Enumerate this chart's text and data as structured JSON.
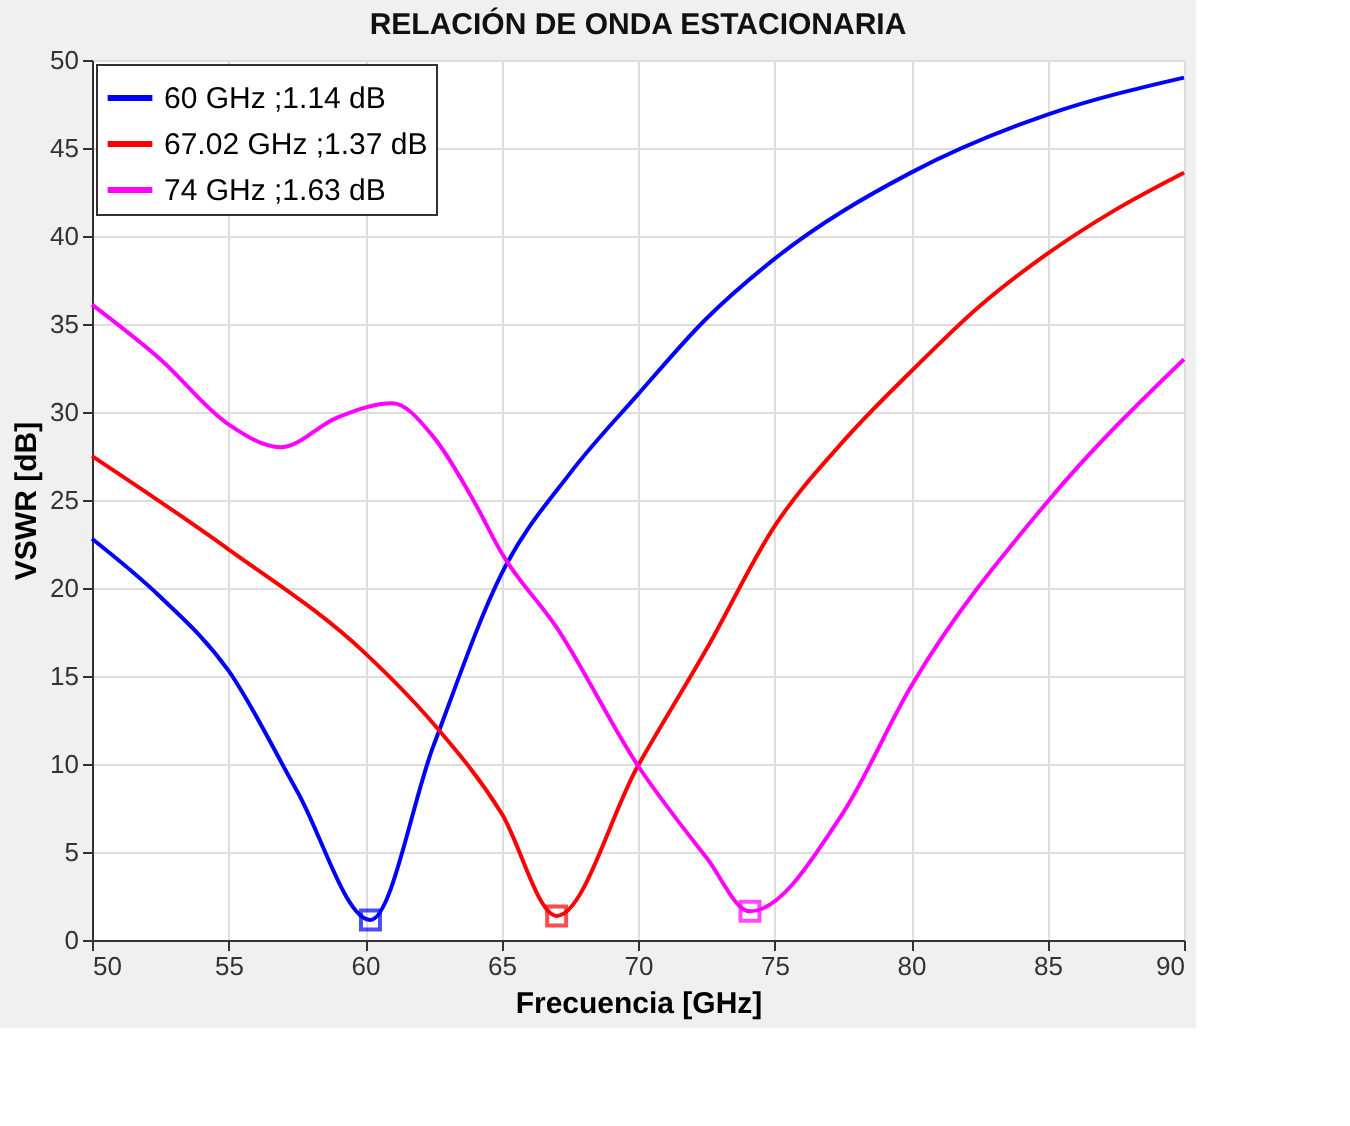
{
  "chart_data": {
    "type": "line",
    "title": "RELACIÓN DE ONDA ESTACIONARIA",
    "xlabel": "Frecuencia [GHz]",
    "ylabel": "VSWR [dB]",
    "xlim": [
      50,
      90
    ],
    "xticks": [
      50,
      55,
      60,
      65,
      70,
      75,
      80,
      85,
      90
    ],
    "ylim": [
      0,
      50
    ],
    "yticks": [
      0,
      5,
      10,
      15,
      20,
      25,
      30,
      35,
      40,
      45,
      50
    ],
    "grid": true,
    "legend": "top left",
    "line_style": "solid",
    "marker": "none",
    "series": [
      {
        "name": "60 GHz ;1.14 dB",
        "color": "#0000ff",
        "x": [
          50,
          52.5,
          55,
          57.5,
          60.2,
          62.5,
          65,
          67.5,
          70,
          72.5,
          75,
          80,
          85,
          90
        ],
        "values": [
          22.8,
          19.5,
          15.3,
          8.5,
          1.14,
          11,
          20.8,
          26.5,
          31,
          35.3,
          38.7,
          43.6,
          46.9,
          49.0
        ]
      },
      {
        "name": "67.02 GHz ;1.37 dB",
        "color": "#ff0000",
        "x": [
          50,
          55,
          60,
          62.5,
          65,
          67.02,
          70,
          72.5,
          75,
          77.5,
          80,
          82.5,
          85,
          87.5,
          90
        ],
        "values": [
          27.5,
          22.2,
          16.3,
          12.3,
          7.2,
          1.37,
          9.9,
          16.5,
          23.5,
          28.3,
          32.3,
          36,
          39.0,
          41.5,
          43.6
        ]
      },
      {
        "name": "74 GHz ;1.63 dB",
        "color": "#ff00ff",
        "x": [
          50,
          52.5,
          55,
          56.9,
          59,
          61,
          62.5,
          64,
          65,
          67,
          70,
          72.5,
          74.1,
          77.5,
          80,
          85,
          90
        ],
        "values": [
          36.1,
          33.0,
          29.3,
          28.0,
          29.7,
          30.5,
          28.6,
          24.9,
          22.0,
          17.8,
          9.9,
          4.7,
          1.63,
          7.2,
          14.4,
          24.9,
          33.0
        ]
      },
      {
        "type": "scatter",
        "marker": "square",
        "color": "#0000ff",
        "x": [
          60.2
        ],
        "values": [
          1.14
        ]
      },
      {
        "type": "scatter",
        "marker": "square",
        "color": "#ff0000",
        "x": [
          67.02
        ],
        "values": [
          1.37
        ]
      },
      {
        "type": "scatter",
        "marker": "square",
        "color": "#ff00ff",
        "x": [
          74.1
        ],
        "values": [
          1.63
        ]
      }
    ]
  }
}
